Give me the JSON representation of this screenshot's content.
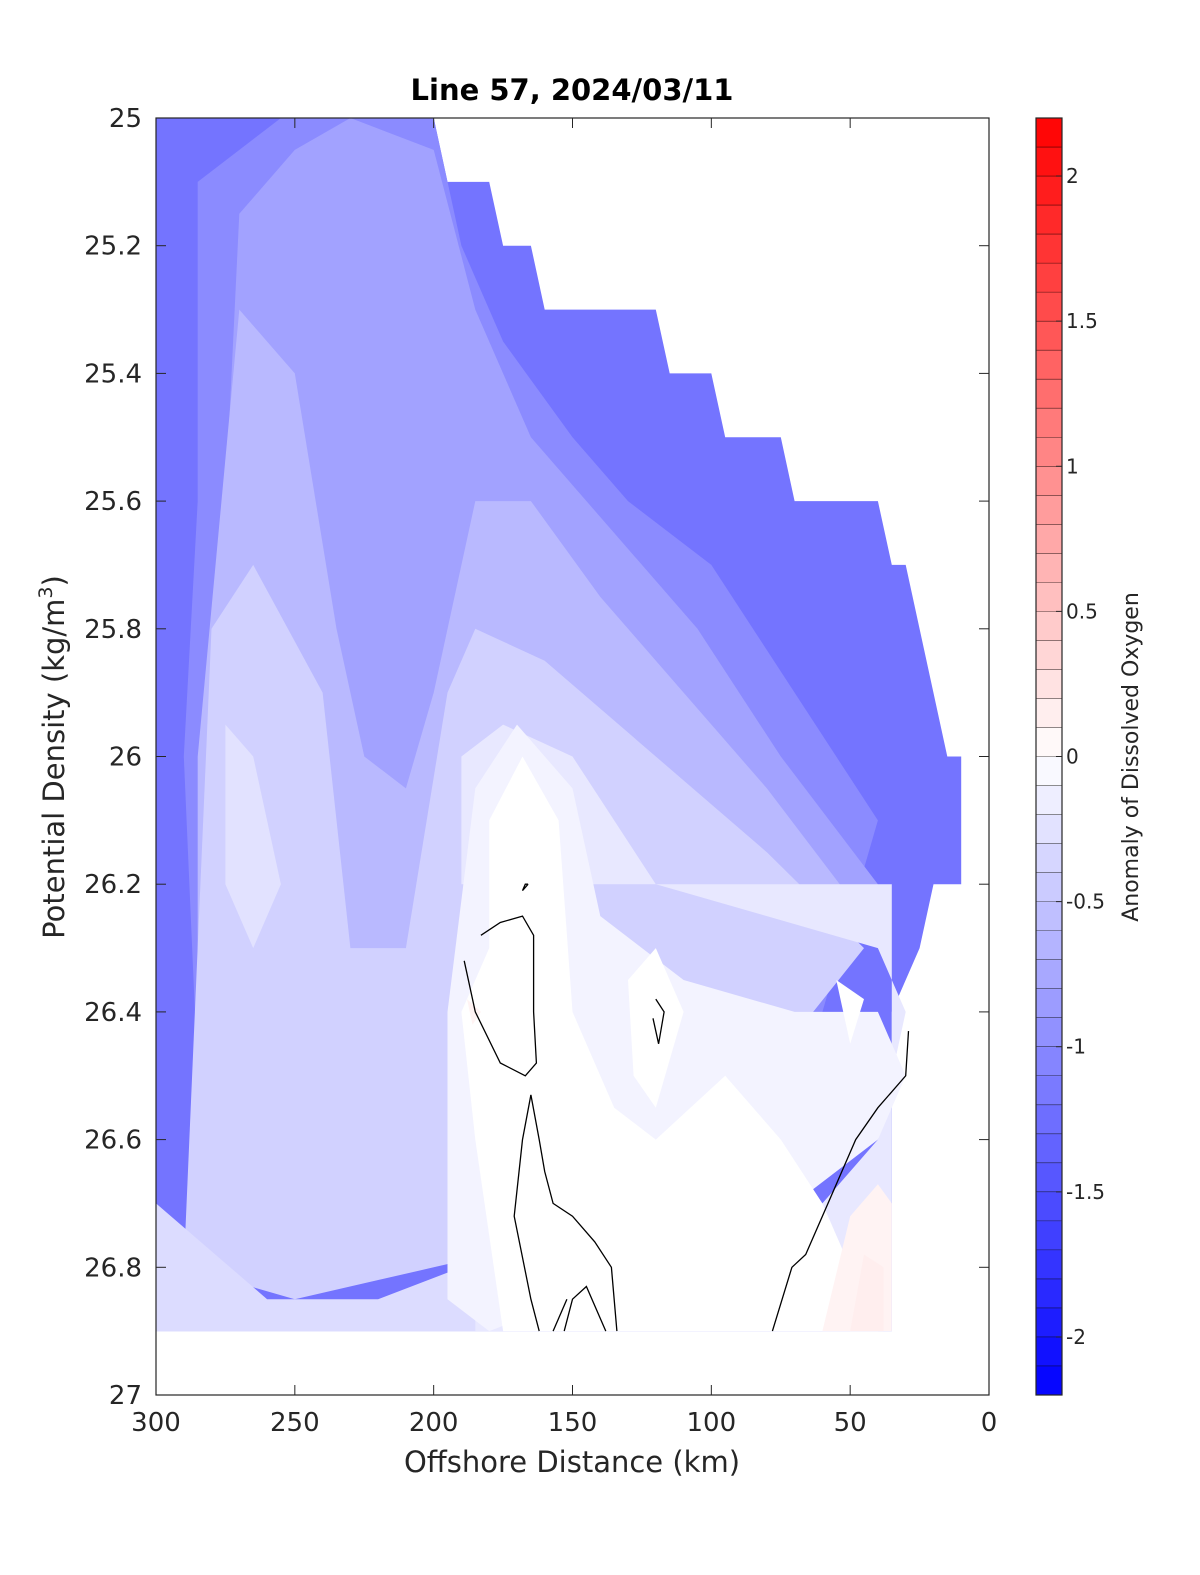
{
  "chart_data": {
    "type": "heatmap",
    "title": "Line 57, 2024/03/11",
    "xlabel": "Offshore Distance (km)",
    "ylabel_main": "Potential Density (kg/m",
    "ylabel_sup": "3",
    "ylabel_close": ")",
    "colorbar_label": "Anomaly of Dissolved Oxygen",
    "xlim": [
      300,
      0
    ],
    "ylim": [
      25,
      27
    ],
    "x_ticks": [
      300,
      250,
      200,
      150,
      100,
      50,
      0
    ],
    "y_ticks": [
      25,
      25.2,
      25.4,
      25.6,
      25.8,
      26,
      26.2,
      26.4,
      26.6,
      26.8,
      27
    ],
    "colorbar_range": [
      -2.2,
      2.2
    ],
    "colorbar_ticks": [
      -2,
      -1.5,
      -1,
      -0.5,
      0,
      0.5,
      1,
      1.5,
      2
    ],
    "colorbar_step": 0.1,
    "colors": {
      "negative": "#0000ff",
      "zero": "#ffffff",
      "positive": "#ff0000"
    },
    "data_outline": [
      [
        300,
        25.0
      ],
      [
        200,
        25.0
      ],
      [
        195,
        25.1
      ],
      [
        180,
        25.1
      ],
      [
        175,
        25.2
      ],
      [
        165,
        25.2
      ],
      [
        160,
        25.3
      ],
      [
        120,
        25.3
      ],
      [
        115,
        25.4
      ],
      [
        100,
        25.4
      ],
      [
        95,
        25.5
      ],
      [
        75,
        25.5
      ],
      [
        70,
        25.6
      ],
      [
        40,
        25.6
      ],
      [
        35,
        25.7
      ],
      [
        30,
        25.7
      ],
      [
        15,
        26.0
      ],
      [
        10,
        26.0
      ],
      [
        10,
        26.2
      ],
      [
        20,
        26.2
      ],
      [
        25,
        26.3
      ],
      [
        35,
        26.4
      ],
      [
        35,
        26.9
      ],
      [
        300,
        26.9
      ]
    ],
    "regions": [
      {
        "value": -1.2,
        "points": [
          [
            300,
            25.0
          ],
          [
            200,
            25.0
          ],
          [
            195,
            25.1
          ],
          [
            180,
            25.1
          ],
          [
            175,
            25.2
          ],
          [
            165,
            25.2
          ],
          [
            160,
            25.3
          ],
          [
            120,
            25.3
          ],
          [
            115,
            25.4
          ],
          [
            100,
            25.4
          ],
          [
            95,
            25.5
          ],
          [
            75,
            25.5
          ],
          [
            70,
            25.6
          ],
          [
            40,
            25.6
          ],
          [
            35,
            25.7
          ],
          [
            30,
            25.7
          ],
          [
            15,
            26.0
          ],
          [
            10,
            26.0
          ],
          [
            10,
            26.2
          ],
          [
            20,
            26.2
          ],
          [
            25,
            26.3
          ],
          [
            35,
            26.4
          ],
          [
            35,
            26.9
          ],
          [
            300,
            26.9
          ]
        ]
      },
      {
        "value": -1.0,
        "points": [
          [
            285,
            25.1
          ],
          [
            255,
            25.0
          ],
          [
            200,
            25.0
          ],
          [
            190,
            25.2
          ],
          [
            175,
            25.35
          ],
          [
            150,
            25.5
          ],
          [
            130,
            25.6
          ],
          [
            100,
            25.7
          ],
          [
            70,
            25.9
          ],
          [
            40,
            26.1
          ],
          [
            60,
            26.4
          ],
          [
            100,
            26.5
          ],
          [
            180,
            26.6
          ],
          [
            230,
            26.7
          ],
          [
            285,
            26.5
          ],
          [
            290,
            26.0
          ],
          [
            285,
            25.6
          ]
        ]
      },
      {
        "value": -0.8,
        "points": [
          [
            270,
            25.15
          ],
          [
            250,
            25.05
          ],
          [
            230,
            25.0
          ],
          [
            200,
            25.05
          ],
          [
            185,
            25.3
          ],
          [
            165,
            25.5
          ],
          [
            135,
            25.65
          ],
          [
            105,
            25.8
          ],
          [
            75,
            26.0
          ],
          [
            40,
            26.2
          ],
          [
            70,
            26.4
          ],
          [
            110,
            26.5
          ],
          [
            200,
            26.6
          ],
          [
            250,
            26.7
          ],
          [
            280,
            26.5
          ],
          [
            280,
            26.0
          ],
          [
            275,
            25.6
          ]
        ]
      },
      {
        "value": -0.6,
        "points": [
          [
            270,
            25.3
          ],
          [
            250,
            25.4
          ],
          [
            235,
            25.8
          ],
          [
            225,
            26.0
          ],
          [
            210,
            26.05
          ],
          [
            200,
            25.9
          ],
          [
            185,
            25.6
          ],
          [
            165,
            25.6
          ],
          [
            140,
            25.75
          ],
          [
            110,
            25.9
          ],
          [
            80,
            26.05
          ],
          [
            45,
            26.25
          ],
          [
            90,
            26.5
          ],
          [
            150,
            26.6
          ],
          [
            200,
            26.55
          ],
          [
            250,
            26.6
          ],
          [
            285,
            26.45
          ],
          [
            285,
            26.0
          ]
        ]
      },
      {
        "value": -0.4,
        "points": [
          [
            280,
            25.8
          ],
          [
            265,
            25.7
          ],
          [
            240,
            25.9
          ],
          [
            230,
            26.3
          ],
          [
            210,
            26.3
          ],
          [
            195,
            25.9
          ],
          [
            185,
            25.8
          ],
          [
            160,
            25.85
          ],
          [
            120,
            26.0
          ],
          [
            80,
            26.15
          ],
          [
            45,
            26.3
          ],
          [
            100,
            26.6
          ],
          [
            150,
            26.75
          ],
          [
            200,
            26.8
          ],
          [
            250,
            26.85
          ],
          [
            290,
            26.8
          ]
        ]
      },
      {
        "value": -0.3,
        "points": [
          [
            300,
            26.7
          ],
          [
            260,
            26.85
          ],
          [
            220,
            26.85
          ],
          [
            190,
            26.8
          ],
          [
            180,
            26.9
          ],
          [
            300,
            26.9
          ]
        ]
      },
      {
        "value": -0.25,
        "points": [
          [
            275,
            25.95
          ],
          [
            265,
            26.0
          ],
          [
            255,
            26.2
          ],
          [
            265,
            26.3
          ],
          [
            275,
            26.2
          ]
        ]
      },
      {
        "value": -0.2,
        "points": [
          [
            190,
            26.0
          ],
          [
            175,
            25.95
          ],
          [
            150,
            26.0
          ],
          [
            120,
            26.2
          ],
          [
            80,
            26.25
          ],
          [
            40,
            26.3
          ],
          [
            30,
            26.4
          ],
          [
            40,
            26.6
          ],
          [
            60,
            26.7
          ],
          [
            100,
            26.75
          ],
          [
            160,
            26.8
          ],
          [
            185,
            26.85
          ],
          [
            185,
            26.9
          ],
          [
            35,
            26.9
          ],
          [
            35,
            26.2
          ],
          [
            10,
            26.2
          ],
          [
            190,
            26.2
          ]
        ]
      },
      {
        "value": -0.1,
        "points": [
          [
            185,
            26.05
          ],
          [
            170,
            25.95
          ],
          [
            150,
            26.05
          ],
          [
            140,
            26.25
          ],
          [
            110,
            26.35
          ],
          [
            70,
            26.4
          ],
          [
            40,
            26.4
          ],
          [
            30,
            26.5
          ],
          [
            40,
            26.6
          ],
          [
            70,
            26.7
          ],
          [
            120,
            26.8
          ],
          [
            180,
            26.9
          ],
          [
            195,
            26.85
          ],
          [
            195,
            26.4
          ]
        ]
      },
      {
        "value": 0.0,
        "points": [
          [
            180,
            26.1
          ],
          [
            168,
            26.0
          ],
          [
            155,
            26.1
          ],
          [
            150,
            26.4
          ],
          [
            135,
            26.55
          ],
          [
            120,
            26.6
          ],
          [
            95,
            26.5
          ],
          [
            75,
            26.6
          ],
          [
            60,
            26.7
          ],
          [
            50,
            26.8
          ],
          [
            40,
            26.9
          ],
          [
            175,
            26.9
          ],
          [
            185,
            26.6
          ],
          [
            190,
            26.4
          ],
          [
            180,
            26.3
          ]
        ]
      },
      {
        "value": 0.0,
        "points": [
          [
            130,
            26.35
          ],
          [
            120,
            26.3
          ],
          [
            110,
            26.4
          ],
          [
            120,
            26.55
          ],
          [
            128,
            26.5
          ]
        ]
      },
      {
        "value": 0.0,
        "points": [
          [
            55,
            26.35
          ],
          [
            45,
            26.38
          ],
          [
            50,
            26.45
          ]
        ]
      },
      {
        "value": 0.1,
        "points": [
          [
            60,
            26.9
          ],
          [
            50,
            26.72
          ],
          [
            40,
            26.67
          ],
          [
            35,
            26.7
          ],
          [
            35,
            26.9
          ]
        ]
      },
      {
        "value": 0.15,
        "points": [
          [
            50,
            26.9
          ],
          [
            45,
            26.78
          ],
          [
            38,
            26.8
          ],
          [
            38,
            26.9
          ]
        ]
      },
      {
        "value": 0.1,
        "points": [
          [
            188,
            26.38
          ],
          [
            183,
            26.4
          ],
          [
            186,
            26.42
          ]
        ]
      }
    ],
    "zero_contours": [
      [
        [
          183,
          26.28
        ],
        [
          176,
          26.26
        ],
        [
          168,
          26.25
        ],
        [
          164,
          26.28
        ],
        [
          164,
          26.4
        ],
        [
          163,
          26.48
        ],
        [
          167,
          26.5
        ],
        [
          176,
          26.48
        ],
        [
          185,
          26.4
        ],
        [
          189,
          26.32
        ]
      ],
      [
        [
          120,
          26.38
        ],
        [
          117,
          26.4
        ],
        [
          119,
          26.45
        ],
        [
          121,
          26.41
        ]
      ],
      [
        [
          166,
          26.2
        ],
        [
          167,
          26.2
        ],
        [
          168,
          26.21
        ],
        [
          166,
          26.2
        ]
      ],
      [
        [
          165,
          26.53
        ],
        [
          162,
          26.6
        ],
        [
          160,
          26.65
        ],
        [
          157,
          26.7
        ],
        [
          150,
          26.72
        ],
        [
          142,
          26.76
        ],
        [
          136,
          26.8
        ],
        [
          134,
          26.9
        ]
      ],
      [
        [
          165,
          26.53
        ],
        [
          168,
          26.6
        ],
        [
          171,
          26.72
        ],
        [
          165,
          26.85
        ],
        [
          162,
          26.9
        ]
      ],
      [
        [
          153,
          26.9
        ],
        [
          150,
          26.85
        ],
        [
          145,
          26.83
        ],
        [
          138,
          26.9
        ]
      ],
      [
        [
          78,
          26.9
        ],
        [
          71,
          26.8
        ],
        [
          66,
          26.78
        ],
        [
          58,
          26.7
        ],
        [
          48,
          26.6
        ],
        [
          40,
          26.55
        ],
        [
          30,
          26.5
        ],
        [
          29,
          26.43
        ]
      ],
      [
        [
          157,
          26.9
        ],
        [
          152,
          26.85
        ]
      ]
    ]
  }
}
